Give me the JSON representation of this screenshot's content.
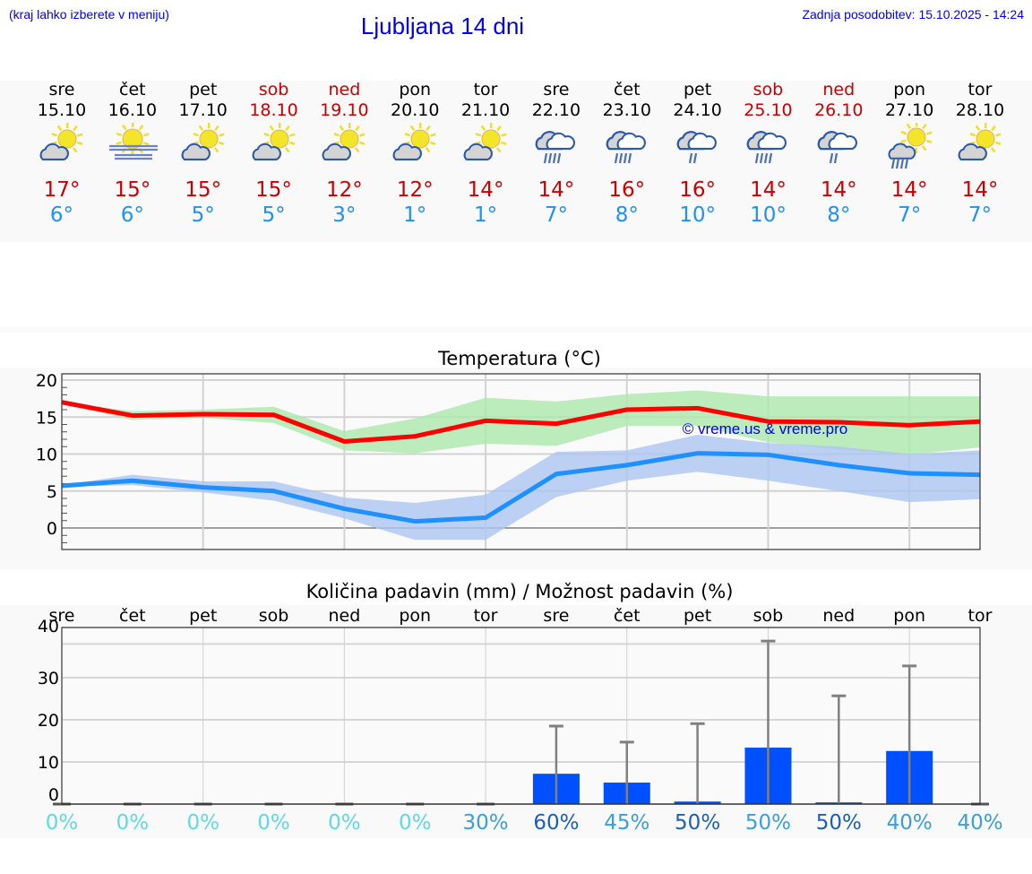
{
  "header": {
    "hint": "(kraj lahko izberete v meniju)",
    "title": "Ljubljana 14 dni",
    "updated": "Zadnja posodobitev: 15.10.2025 - 14:24"
  },
  "colors": {
    "max": "#cc0000",
    "min": "#1e90ff",
    "weekend": "#cc0000",
    "bar": "#0050ff",
    "max_band": "#ade9ad",
    "min_band": "#adc6f2"
  },
  "days": [
    {
      "name": "sre",
      "date": "15.10",
      "icon": "partly-cloudy",
      "max": "17°",
      "min": "6°",
      "weekend": false
    },
    {
      "name": "čet",
      "date": "16.10",
      "icon": "sun-fog",
      "max": "15°",
      "min": "6°",
      "weekend": false
    },
    {
      "name": "pet",
      "date": "17.10",
      "icon": "partly-cloudy",
      "max": "15°",
      "min": "5°",
      "weekend": false
    },
    {
      "name": "sob",
      "date": "18.10",
      "icon": "partly-cloudy",
      "max": "15°",
      "min": "5°",
      "weekend": true
    },
    {
      "name": "ned",
      "date": "19.10",
      "icon": "partly-cloudy",
      "max": "12°",
      "min": "3°",
      "weekend": true
    },
    {
      "name": "pon",
      "date": "20.10",
      "icon": "partly-cloudy",
      "max": "12°",
      "min": "1°",
      "weekend": false
    },
    {
      "name": "tor",
      "date": "21.10",
      "icon": "partly-cloudy",
      "max": "14°",
      "min": "1°",
      "weekend": false
    },
    {
      "name": "sre",
      "date": "22.10",
      "icon": "rain-heavy",
      "max": "14°",
      "min": "7°",
      "weekend": false
    },
    {
      "name": "čet",
      "date": "23.10",
      "icon": "rain-heavy",
      "max": "16°",
      "min": "8°",
      "weekend": false
    },
    {
      "name": "pet",
      "date": "24.10",
      "icon": "rain-light",
      "max": "16°",
      "min": "10°",
      "weekend": false
    },
    {
      "name": "sob",
      "date": "25.10",
      "icon": "rain-heavy",
      "max": "14°",
      "min": "10°",
      "weekend": true
    },
    {
      "name": "ned",
      "date": "26.10",
      "icon": "rain-light",
      "max": "14°",
      "min": "8°",
      "weekend": true
    },
    {
      "name": "pon",
      "date": "27.10",
      "icon": "sun-cloud-rain",
      "max": "14°",
      "min": "7°",
      "weekend": false
    },
    {
      "name": "tor",
      "date": "28.10",
      "icon": "partly-cloudy",
      "max": "14°",
      "min": "7°",
      "weekend": false
    }
  ],
  "chart_data": [
    {
      "type": "line",
      "title": "Temperatura (°C)",
      "watermark": "© vreme.us & vreme.pro",
      "ylim": [
        -3,
        21
      ],
      "yticks": [
        "20",
        "15",
        "10",
        "5",
        "0"
      ],
      "ytick_values": [
        20,
        15,
        10,
        5,
        0
      ],
      "grid": true,
      "series": [
        {
          "key": "max",
          "values": [
            17,
            15.2,
            15.4,
            15.3,
            11.7,
            12.4,
            14.5,
            14.1,
            16,
            16.2,
            14.4,
            14.3,
            13.9,
            14.4
          ],
          "band_high": [
            17,
            15.8,
            16,
            16.4,
            13.1,
            14.8,
            17.6,
            17.1,
            18.1,
            18.6,
            17.8,
            17.8,
            17.8,
            17.8
          ],
          "band_low": [
            16.8,
            14.6,
            14.9,
            14.2,
            10.5,
            10.1,
            11.4,
            11.1,
            13.8,
            13.8,
            11.6,
            10.6,
            9.9,
            10.9
          ]
        },
        {
          "key": "min",
          "values": [
            5.7,
            6.4,
            5.5,
            5,
            2.6,
            0.9,
            1.4,
            7.3,
            8.5,
            10.1,
            9.9,
            8.5,
            7.4,
            7.2
          ],
          "band_high": [
            5.8,
            7.2,
            6.3,
            6.3,
            4.1,
            3.4,
            4.5,
            10.3,
            10.5,
            12.6,
            11.5,
            11,
            10,
            10.5
          ],
          "band_low": [
            5.6,
            5.8,
            4.8,
            3.7,
            1.3,
            -1.6,
            -1.6,
            4.2,
            6.4,
            7.6,
            6.4,
            5,
            3.5,
            3.9
          ]
        }
      ]
    },
    {
      "type": "bar",
      "title": "Količina padavin (mm) / Možnost padavin (%)",
      "categories": [
        "sre",
        "čet",
        "pet",
        "sob",
        "ned",
        "pon",
        "tor",
        "sre",
        "čet",
        "pet",
        "sob",
        "ned",
        "pon",
        "tor"
      ],
      "ylim": [
        0,
        40
      ],
      "yticks": [
        "40",
        "30",
        "20",
        "10",
        "0"
      ],
      "values": [
        0,
        0,
        0,
        0,
        0,
        0,
        0,
        7.2,
        5.1,
        0.6,
        13.4,
        0.4,
        12.6,
        0
      ],
      "error_high": [
        0,
        0,
        0,
        0,
        0,
        0,
        0,
        18.5,
        14.7,
        19.1,
        38.7,
        25.7,
        32.8,
        0
      ],
      "probability": [
        "0%",
        "0%",
        "0%",
        "0%",
        "0%",
        "0%",
        "30%",
        "60%",
        "45%",
        "50%",
        "50%",
        "50%",
        "40%",
        "40%"
      ],
      "probability_colors": [
        "#5fd8e8",
        "#5fd8e8",
        "#5fd8e8",
        "#5fd8e8",
        "#5fd8e8",
        "#5fd8e8",
        "#3a9ee0",
        "#1a5fc0",
        "#3a9ee0",
        "#1a5fc0",
        "#3a9ee0",
        "#1a5fc0",
        "#3a9ee0",
        "#3a9ee0"
      ]
    }
  ]
}
